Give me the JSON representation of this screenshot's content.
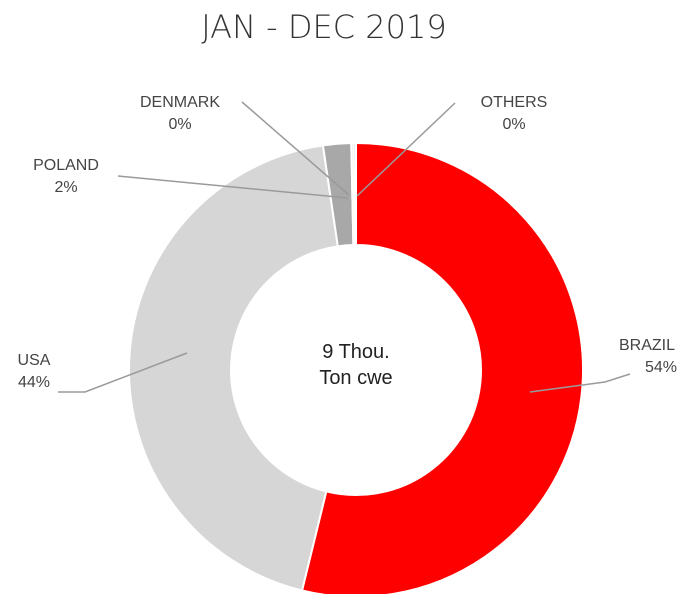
{
  "chart_data": {
    "type": "pie",
    "title": "JAN - DEC 2019",
    "center_label": [
      "9 Thou.",
      "Ton cwe"
    ],
    "slices": [
      {
        "name": "BRAZIL",
        "value": 54,
        "label": "54%",
        "color": "#ff0000"
      },
      {
        "name": "USA",
        "value": 44,
        "label": "44%",
        "color": "#d6d6d6"
      },
      {
        "name": "POLAND",
        "value": 2,
        "label": "2%",
        "color": "#a8a8a8"
      },
      {
        "name": "DENMARK",
        "value": 0,
        "label": "0%",
        "color": "#c4c4c4"
      },
      {
        "name": "OTHERS",
        "value": 0,
        "label": "0%",
        "color": "#c4c4c4"
      }
    ]
  }
}
